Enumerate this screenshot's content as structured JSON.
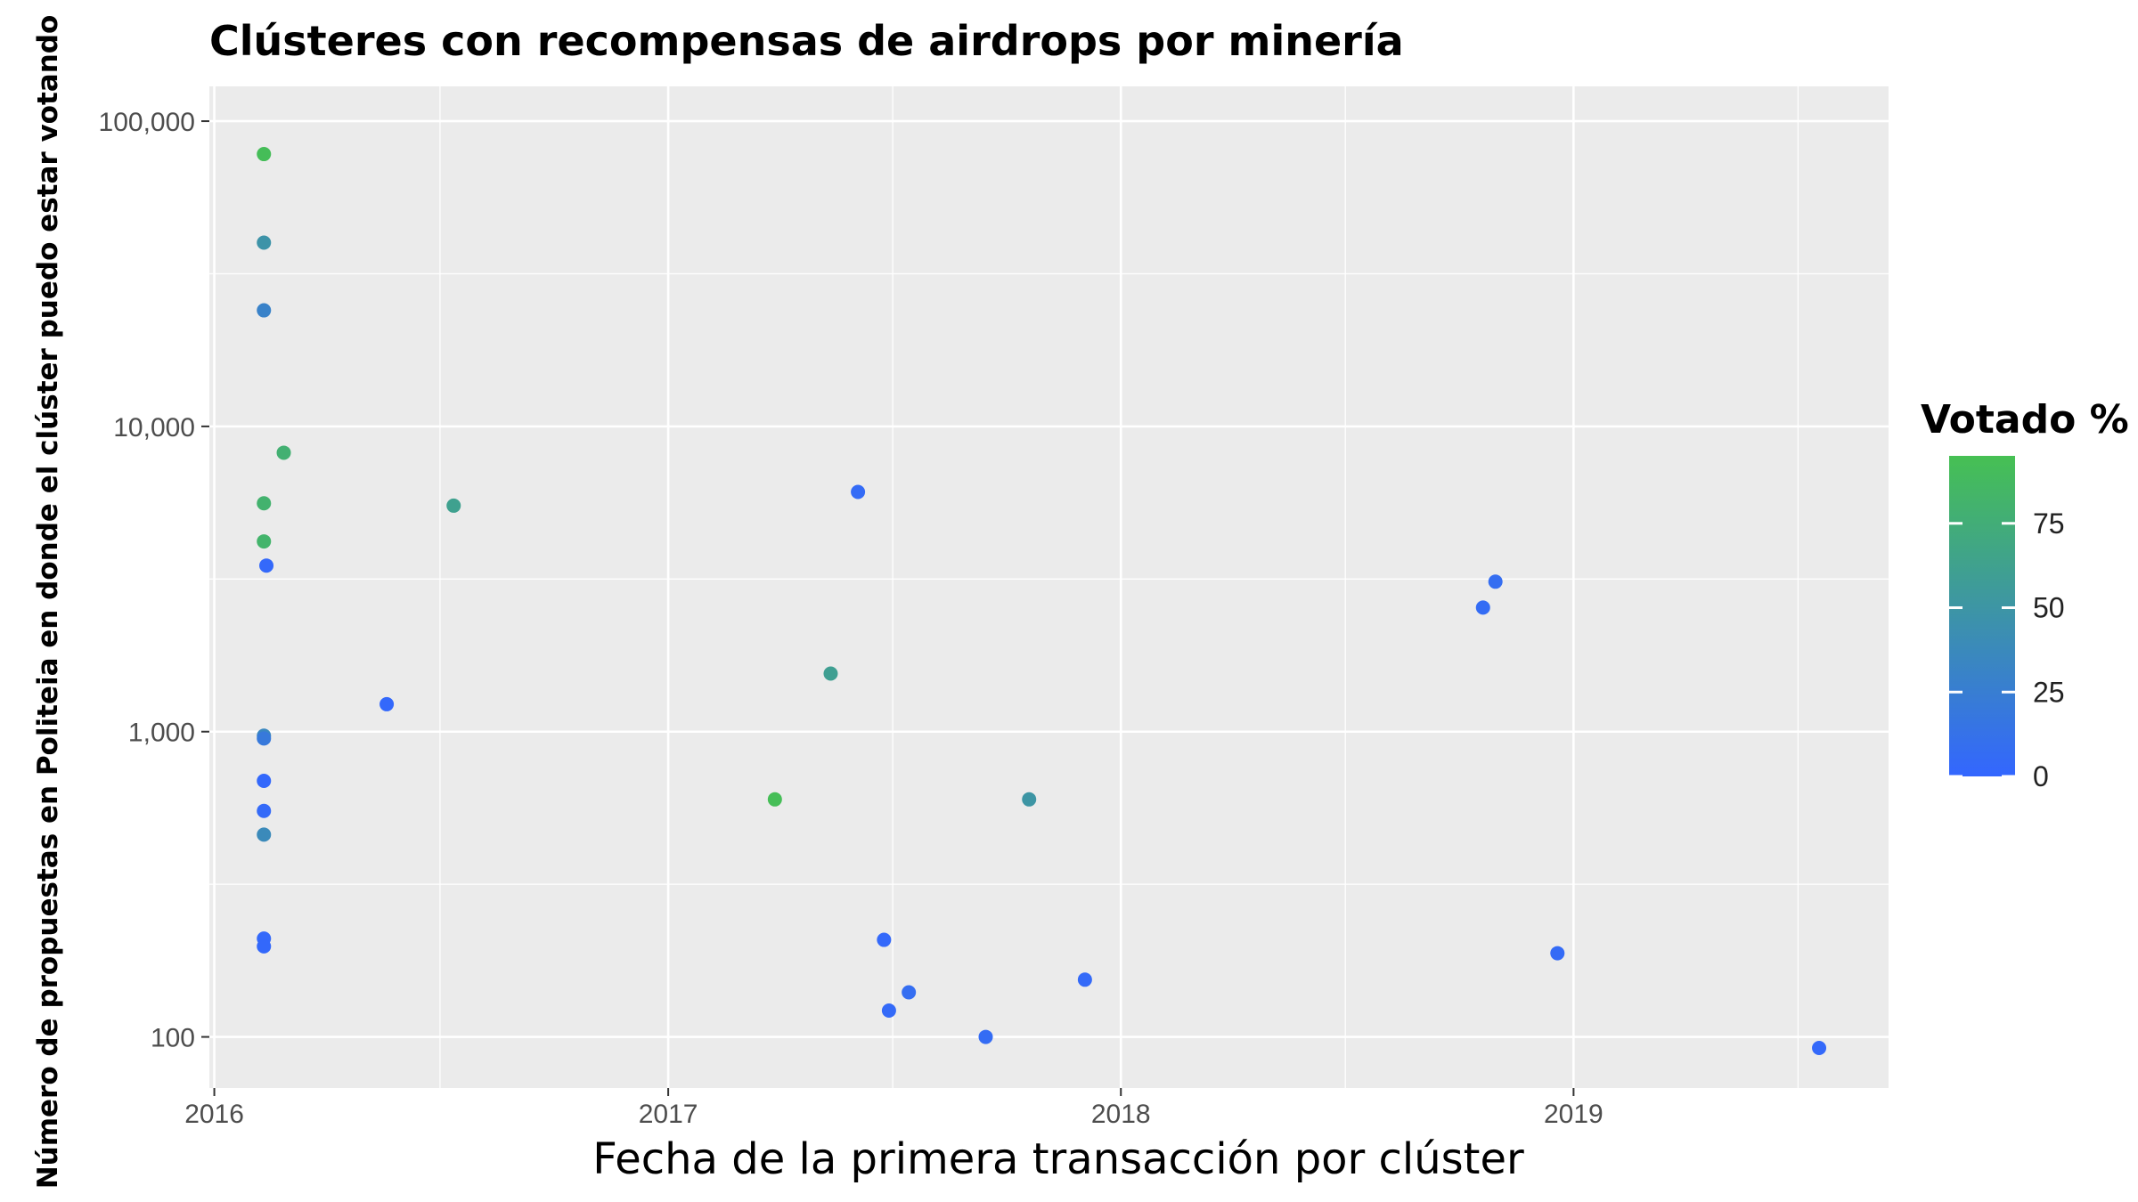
{
  "chart_data": {
    "type": "scatter",
    "title": "Clústeres con recompensas de airdrops por minería",
    "xlabel": "Fecha de la primera transacción por clúster",
    "ylabel": "Número de propuestas en Politeia en donde el clúster puedo estar votando",
    "x_ticks": [
      "2016",
      "2017",
      "2018",
      "2019"
    ],
    "y_ticks": [
      "100",
      "1,000",
      "10,000",
      "100,000"
    ],
    "y_scale": "log10",
    "xlim": [
      "2015-12-28",
      "2019-09-12"
    ],
    "ylim": [
      68,
      130000
    ],
    "grid": true,
    "legend": {
      "title": "Votado %",
      "position": "right",
      "ticks": [
        "0",
        "25",
        "50",
        "75"
      ],
      "range": [
        0,
        95
      ],
      "color_low": "#3366ff",
      "color_high": "#46c053"
    },
    "colors": {
      "panel_background": "#ebebeb",
      "grid": "#ffffff"
    },
    "points": [
      {
        "date": "2016-02-10",
        "y": 78000,
        "votado": 92
      },
      {
        "date": "2016-02-10",
        "y": 40000,
        "votado": 48
      },
      {
        "date": "2016-02-10",
        "y": 24000,
        "votado": 30
      },
      {
        "date": "2016-02-26",
        "y": 8200,
        "votado": 78
      },
      {
        "date": "2016-02-10",
        "y": 5600,
        "votado": 80
      },
      {
        "date": "2016-02-10",
        "y": 4200,
        "votado": 82
      },
      {
        "date": "2016-02-12",
        "y": 3500,
        "votado": 3
      },
      {
        "date": "2016-02-10",
        "y": 970,
        "votado": 35
      },
      {
        "date": "2016-02-10",
        "y": 950,
        "votado": 20
      },
      {
        "date": "2016-02-10",
        "y": 690,
        "votado": 2
      },
      {
        "date": "2016-02-10",
        "y": 550,
        "votado": 4
      },
      {
        "date": "2016-02-10",
        "y": 460,
        "votado": 38
      },
      {
        "date": "2016-02-10",
        "y": 210,
        "votado": 3
      },
      {
        "date": "2016-02-10",
        "y": 198,
        "votado": 2
      },
      {
        "date": "2016-05-19",
        "y": 1230,
        "votado": 2
      },
      {
        "date": "2016-07-12",
        "y": 5500,
        "votado": 62
      },
      {
        "date": "2017-03-28",
        "y": 600,
        "votado": 93
      },
      {
        "date": "2017-05-12",
        "y": 1550,
        "votado": 60
      },
      {
        "date": "2017-06-03",
        "y": 6100,
        "votado": 5
      },
      {
        "date": "2017-06-24",
        "y": 208,
        "votado": 3
      },
      {
        "date": "2017-06-28",
        "y": 122,
        "votado": 4
      },
      {
        "date": "2017-07-14",
        "y": 140,
        "votado": 8
      },
      {
        "date": "2017-09-14",
        "y": 100,
        "votado": 6
      },
      {
        "date": "2017-10-19",
        "y": 600,
        "votado": 50
      },
      {
        "date": "2017-12-03",
        "y": 154,
        "votado": 4
      },
      {
        "date": "2018-10-20",
        "y": 2550,
        "votado": 6
      },
      {
        "date": "2018-10-30",
        "y": 3100,
        "votado": 8
      },
      {
        "date": "2018-12-19",
        "y": 188,
        "votado": 5
      },
      {
        "date": "2019-07-18",
        "y": 92,
        "votado": 3
      }
    ]
  }
}
